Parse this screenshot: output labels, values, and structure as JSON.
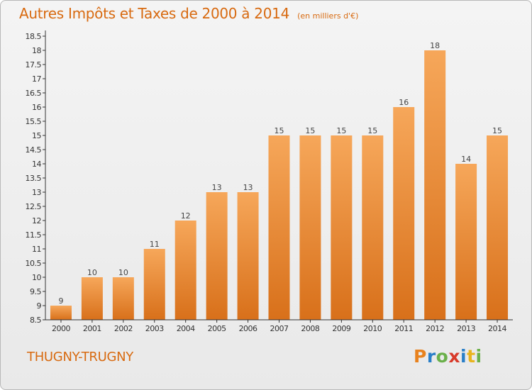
{
  "header": {
    "title": "Autres Impôts et Taxes de 2000 à 2014",
    "subtitle": "(en milliers d'€)"
  },
  "footer": {
    "commune": "THUGNY-TRUGNY",
    "logo_text": "Proxiti"
  },
  "colors": {
    "title": "#d86a10",
    "bar_light": "#f6a75a",
    "bar_dark": "#d8701a",
    "logo_letters": [
      "#e8821e",
      "#2a7fc8",
      "#6ab04a",
      "#d83a2a",
      "#2a7fc8",
      "#e8b41e",
      "#6ab04a"
    ]
  },
  "chart_data": {
    "type": "bar",
    "title": "Autres Impôts et Taxes de 2000 à 2014",
    "subtitle": "(en milliers d'€)",
    "categories": [
      "2000",
      "2001",
      "2002",
      "2003",
      "2004",
      "2005",
      "2006",
      "2007",
      "2008",
      "2009",
      "2010",
      "2011",
      "2012",
      "2013",
      "2014"
    ],
    "values": [
      9,
      10,
      10,
      11,
      12,
      13,
      13,
      15,
      15,
      15,
      15,
      16,
      18,
      14,
      15
    ],
    "ylim": [
      8.5,
      18.5
    ],
    "yticks": [
      "8.5",
      "9",
      "9.5",
      "10",
      "10.5",
      "11",
      "11.5",
      "12",
      "12.5",
      "13",
      "13.5",
      "14",
      "14.5",
      "15",
      "15.5",
      "16",
      "16.5",
      "17",
      "17.5",
      "18",
      "18.5"
    ],
    "grid": false,
    "legend": "none"
  }
}
